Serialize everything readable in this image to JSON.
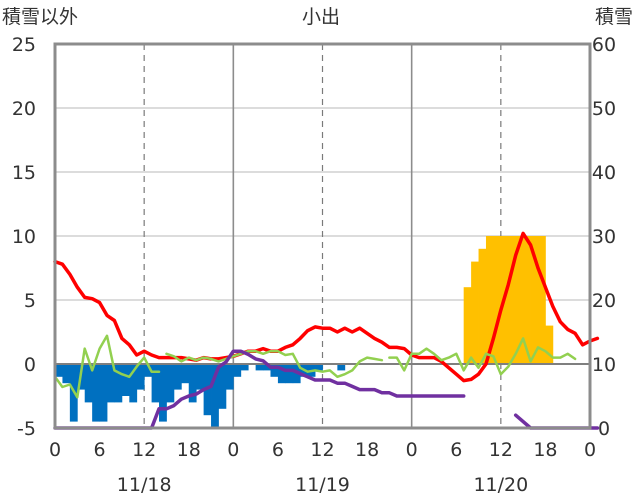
{
  "chart_data": {
    "type": "bar+line",
    "title": "小出",
    "left_axis_label": "積雪以外",
    "right_axis_label": "積雪",
    "left_axis": {
      "min": -5,
      "max": 25,
      "ticks": [
        -5,
        0,
        5,
        10,
        15,
        20,
        25
      ]
    },
    "right_axis": {
      "min": 0,
      "max": 60,
      "ticks": [
        0,
        10,
        20,
        30,
        40,
        50,
        60
      ]
    },
    "x_axis": {
      "unit": "hours",
      "min": 0,
      "max": 72,
      "hour_labels": [
        "0",
        "6",
        "12",
        "18",
        "0",
        "6",
        "12",
        "18",
        "0",
        "6",
        "12",
        "18",
        "0"
      ],
      "date_labels": [
        {
          "text": "11/18",
          "at": 12
        },
        {
          "text": "11/19",
          "at": 36
        },
        {
          "text": "11/20",
          "at": 60
        }
      ]
    },
    "grid": {
      "major_every_hours": 24,
      "dashed_every_hours": 12
    },
    "series": [
      {
        "kind": "bar",
        "axis": "left",
        "color": "#0070c0",
        "points": [
          [
            1,
            -1
          ],
          [
            2,
            -1.5
          ],
          [
            3,
            -4.5
          ],
          [
            4,
            -2
          ],
          [
            5,
            -3
          ],
          [
            6,
            -4.5
          ],
          [
            7,
            -4.5
          ],
          [
            8,
            -3
          ],
          [
            9,
            -3
          ],
          [
            10,
            -2.5
          ],
          [
            11,
            -3
          ],
          [
            12,
            -2
          ],
          [
            13,
            -1
          ],
          [
            14,
            -3
          ],
          [
            15,
            -4.5
          ],
          [
            16,
            -3
          ],
          [
            17,
            -2
          ],
          [
            18,
            -1.5
          ],
          [
            19,
            -3
          ],
          [
            20,
            -2
          ],
          [
            21,
            -4
          ],
          [
            22,
            -5
          ],
          [
            23,
            -3.5
          ],
          [
            24,
            -2
          ],
          [
            25,
            -1
          ],
          [
            26,
            -0.5
          ],
          [
            28,
            -0.5
          ],
          [
            29,
            -0.5
          ],
          [
            30,
            -1
          ],
          [
            31,
            -1.5
          ],
          [
            32,
            -1.5
          ],
          [
            33,
            -1.5
          ],
          [
            34,
            -1
          ],
          [
            35,
            -1
          ],
          [
            36,
            -0.5
          ],
          [
            39,
            -0.5
          ]
        ]
      },
      {
        "kind": "bar",
        "axis": "left",
        "color": "#ffc000",
        "points": [
          [
            56,
            6
          ],
          [
            57,
            8
          ],
          [
            58,
            9
          ],
          [
            59,
            10
          ],
          [
            60,
            10
          ],
          [
            61,
            10
          ],
          [
            62,
            10
          ],
          [
            63,
            10
          ],
          [
            64,
            10
          ],
          [
            65,
            10
          ],
          [
            66,
            10
          ],
          [
            67,
            3
          ]
        ]
      },
      {
        "kind": "line",
        "axis": "left",
        "color": "#ff0000",
        "points": [
          [
            0,
            8
          ],
          [
            1,
            7.8
          ],
          [
            2,
            7
          ],
          [
            3,
            6
          ],
          [
            4,
            5.2
          ],
          [
            5,
            5.1
          ],
          [
            6,
            4.8
          ],
          [
            7,
            3.8
          ],
          [
            8,
            3.4
          ],
          [
            9,
            2
          ],
          [
            10,
            1.5
          ],
          [
            11,
            0.7
          ],
          [
            12,
            1
          ],
          [
            13,
            0.7
          ],
          [
            14,
            0.5
          ],
          [
            15,
            0.5
          ],
          [
            16,
            0.5
          ],
          [
            17,
            0.5
          ],
          [
            18,
            0.4
          ],
          [
            19,
            0.3
          ],
          [
            20,
            0.5
          ],
          [
            21,
            0.4
          ],
          [
            22,
            0.4
          ],
          [
            23,
            0.5
          ],
          [
            24,
            0.6
          ],
          [
            25,
            0.8
          ],
          [
            26,
            1
          ],
          [
            27,
            1
          ],
          [
            28,
            1.2
          ],
          [
            29,
            1
          ],
          [
            30,
            1
          ],
          [
            31,
            1.3
          ],
          [
            32,
            1.5
          ],
          [
            33,
            2
          ],
          [
            34,
            2.6
          ],
          [
            35,
            2.9
          ],
          [
            36,
            2.8
          ],
          [
            37,
            2.8
          ],
          [
            38,
            2.5
          ],
          [
            39,
            2.8
          ],
          [
            40,
            2.5
          ],
          [
            41,
            2.8
          ],
          [
            42,
            2.4
          ],
          [
            43,
            2
          ],
          [
            44,
            1.7
          ],
          [
            45,
            1.3
          ],
          [
            46,
            1.3
          ],
          [
            47,
            1.2
          ],
          [
            48,
            0.7
          ],
          [
            49,
            0.5
          ],
          [
            50,
            0.5
          ],
          [
            51,
            0.5
          ],
          [
            52,
            0.2
          ],
          [
            53,
            -0.3
          ],
          [
            54,
            -0.8
          ],
          [
            55,
            -1.3
          ],
          [
            56,
            -1.2
          ],
          [
            57,
            -0.8
          ],
          [
            58,
            0
          ],
          [
            59,
            2
          ],
          [
            60,
            4.2
          ],
          [
            61,
            6.2
          ],
          [
            62,
            8.5
          ],
          [
            63,
            10.2
          ],
          [
            64,
            9.3
          ],
          [
            65,
            7.5
          ],
          [
            66,
            6
          ],
          [
            67,
            4.5
          ],
          [
            68,
            3.3
          ],
          [
            69,
            2.7
          ],
          [
            70,
            2.4
          ],
          [
            71,
            1.5
          ],
          [
            72,
            1.8
          ],
          [
            73,
            2
          ]
        ]
      },
      {
        "kind": "line",
        "axis": "left",
        "color": "#92d050",
        "segments": [
          [
            [
              0,
              -1
            ],
            [
              1,
              -1.8
            ],
            [
              2,
              -1.6
            ],
            [
              3,
              -2.6
            ],
            [
              4,
              1.2
            ],
            [
              5,
              -0.5
            ],
            [
              6,
              1.2
            ],
            [
              7,
              2.2
            ],
            [
              8,
              -0.5
            ],
            [
              9,
              -0.8
            ],
            [
              10,
              -1
            ],
            [
              11,
              -0.2
            ],
            [
              12,
              0.5
            ],
            [
              13,
              -0.6
            ],
            [
              14,
              -0.6
            ]
          ],
          [
            [
              15,
              0.8
            ],
            [
              16,
              0.6
            ],
            [
              17,
              0.2
            ],
            [
              18,
              0.5
            ],
            [
              19,
              0.3
            ],
            [
              20,
              0.5
            ],
            [
              21,
              0.4
            ],
            [
              22,
              0.2
            ],
            [
              23,
              0.4
            ],
            [
              24,
              0.6
            ],
            [
              25,
              0.8
            ],
            [
              26,
              1
            ],
            [
              27,
              1
            ],
            [
              28,
              0.8
            ],
            [
              29,
              1
            ],
            [
              30,
              1
            ],
            [
              31,
              0.7
            ],
            [
              32,
              0.8
            ],
            [
              33,
              -0.3
            ],
            [
              34,
              -0.6
            ],
            [
              35,
              -0.5
            ],
            [
              36,
              -0.6
            ],
            [
              37,
              -0.5
            ],
            [
              38,
              -1
            ],
            [
              39,
              -0.8
            ],
            [
              40,
              -0.5
            ],
            [
              41,
              0.2
            ],
            [
              42,
              0.5
            ],
            [
              43,
              0.4
            ],
            [
              44,
              0.3
            ]
          ],
          [
            [
              45,
              0.5
            ],
            [
              46,
              0.5
            ],
            [
              47,
              -0.5
            ],
            [
              48,
              0.8
            ],
            [
              49,
              0.8
            ],
            [
              50,
              1.2
            ],
            [
              51,
              0.8
            ],
            [
              52,
              0.3
            ],
            [
              53,
              0.5
            ],
            [
              54,
              0.8
            ],
            [
              55,
              -0.5
            ],
            [
              56,
              0.5
            ],
            [
              57,
              -0.3
            ],
            [
              58,
              0.8
            ],
            [
              59,
              0.6
            ],
            [
              60,
              -0.8
            ],
            [
              61,
              -0.2
            ],
            [
              62,
              0.8
            ],
            [
              63,
              2
            ],
            [
              64,
              0.2
            ],
            [
              65,
              1.3
            ],
            [
              66,
              1
            ],
            [
              67,
              0.5
            ],
            [
              68,
              0.5
            ],
            [
              69,
              0.8
            ],
            [
              70,
              0.4
            ]
          ]
        ]
      },
      {
        "kind": "line",
        "axis": "right",
        "color": "#7030a0",
        "segments": [
          [
            [
              0,
              0
            ],
            [
              10,
              0
            ],
            [
              13,
              0
            ],
            [
              14,
              3
            ],
            [
              15,
              3
            ],
            [
              16,
              3.5
            ],
            [
              17,
              4.5
            ],
            [
              18,
              5
            ],
            [
              19,
              5.3
            ],
            [
              20,
              6
            ],
            [
              21,
              6.5
            ],
            [
              22,
              9.5
            ],
            [
              23,
              10.3
            ],
            [
              24,
              12
            ],
            [
              25,
              12
            ],
            [
              26,
              11.5
            ],
            [
              27,
              10.8
            ],
            [
              28,
              10.5
            ],
            [
              29,
              9.5
            ],
            [
              30,
              9.5
            ],
            [
              31,
              9
            ],
            [
              32,
              9
            ],
            [
              33,
              8.5
            ],
            [
              34,
              8
            ],
            [
              35,
              7.5
            ],
            [
              36,
              7.5
            ],
            [
              37,
              7.5
            ],
            [
              38,
              7
            ],
            [
              39,
              7
            ],
            [
              40,
              6.5
            ],
            [
              41,
              6
            ],
            [
              42,
              6
            ],
            [
              43,
              6
            ],
            [
              44,
              5.5
            ],
            [
              45,
              5.5
            ],
            [
              46,
              5
            ],
            [
              47,
              5
            ],
            [
              48,
              5
            ],
            [
              49,
              5
            ],
            [
              50,
              5
            ],
            [
              51,
              5
            ],
            [
              52,
              5
            ],
            [
              53,
              5
            ],
            [
              54,
              5
            ],
            [
              55,
              5
            ]
          ],
          [
            [
              62,
              2
            ],
            [
              64,
              0
            ],
            [
              73,
              0
            ]
          ]
        ]
      }
    ]
  }
}
